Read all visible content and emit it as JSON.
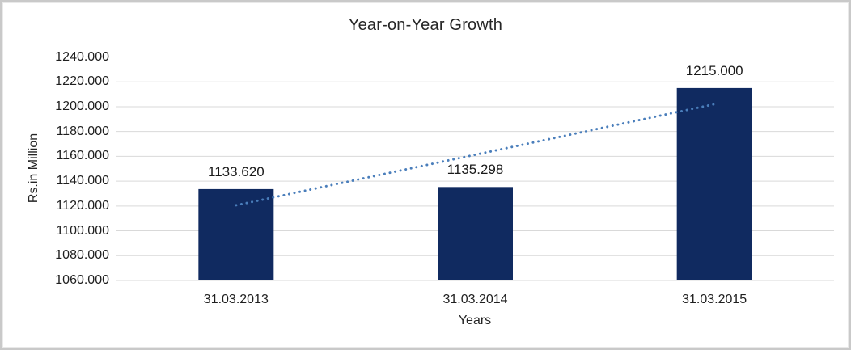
{
  "window": {
    "background": "#ffffff",
    "border_color": "#c9c9c9"
  },
  "chart_data": {
    "type": "bar",
    "title": "Year-on-Year Growth",
    "xlabel": "Years",
    "ylabel": "Rs.in Million",
    "categories": [
      "31.03.2013",
      "31.03.2014",
      "31.03.2015"
    ],
    "values": [
      1133.62,
      1135.298,
      1215.0
    ],
    "data_labels": [
      "1133.620",
      "1135.298",
      "1215.000"
    ],
    "ylim": [
      1060,
      1240
    ],
    "ytick_step": 20,
    "ytick_labels": [
      "1060.000",
      "1080.000",
      "1100.000",
      "1120.000",
      "1140.000",
      "1160.000",
      "1180.000",
      "1200.000",
      "1220.000",
      "1240.000"
    ],
    "grid": true,
    "legend": "none",
    "trendline": {
      "type": "linear",
      "style": "dotted",
      "start_value": 1120.6,
      "end_value": 1202.0
    },
    "colors": {
      "bar": "#102a60",
      "trendline": "#4a7ebb",
      "gridline": "#d9d9d9",
      "text": "#1f1f1f"
    }
  }
}
